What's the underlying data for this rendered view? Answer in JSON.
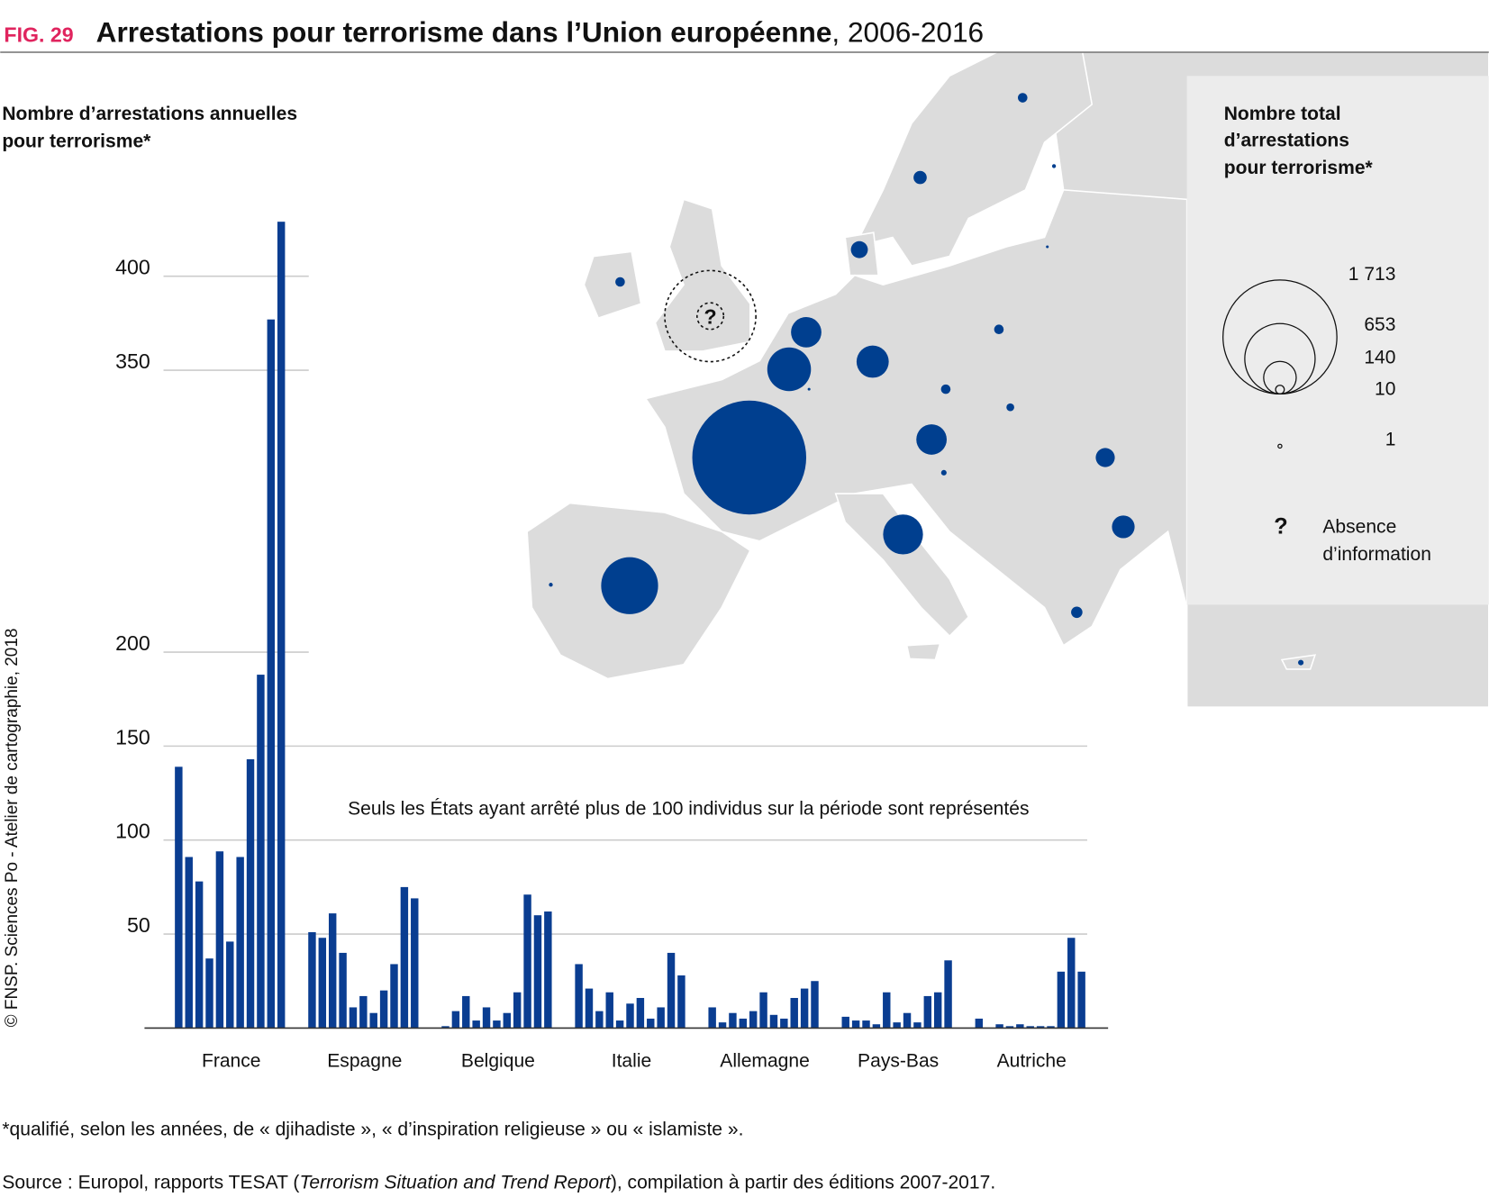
{
  "chart_data": {
    "type": "bar",
    "fig": "FIG. 29",
    "title": "Arrestations pour terrorisme dans l’Union européenne",
    "title_suffix": ", 2006-2016",
    "y_label": [
      "Nombre d’arrestations annuelles",
      "pour terrorisme*"
    ],
    "annotation": "Seuls les États ayant arrêté plus de 100 individus sur la période sont représentés",
    "credit": "© FNSP. Sciences Po - Atelier de cartographie, 2018",
    "footnote": "*qualifié, selon les années, de « djihadiste », « d’inspiration religieuse » ou « islamiste ».",
    "source": [
      "Source : Europol, rapports TESAT (",
      "Terrorism Situation and Trend Report",
      "), compilation à partir des éditions 2007-2017."
    ],
    "color": "#0a3d91",
    "categories": [
      "France",
      "Espagne",
      "Belgique",
      "Italie",
      "Allemagne",
      "Pays-Bas",
      "Autriche"
    ],
    "values": [
      [
        139,
        91,
        78,
        37,
        94,
        46,
        91,
        143,
        188,
        377,
        429
      ],
      [
        51,
        48,
        61,
        40,
        11,
        17,
        8,
        20,
        34,
        75,
        69
      ],
      [
        1,
        9,
        17,
        4,
        11,
        4,
        8,
        19,
        71,
        60,
        62
      ],
      [
        34,
        21,
        9,
        19,
        4,
        13,
        16,
        5,
        11,
        40,
        28
      ],
      [
        11,
        3,
        8,
        5,
        9,
        19,
        7,
        5,
        16,
        21,
        25
      ],
      [
        6,
        4,
        4,
        2,
        19,
        3,
        8,
        3,
        17,
        19,
        36
      ],
      [
        5,
        0,
        2,
        1,
        2,
        1,
        1,
        1,
        30,
        48,
        30
      ]
    ],
    "ylim": [
      0,
      430
    ],
    "yticks": [
      50,
      100,
      150,
      200,
      350,
      400
    ],
    "map": {
      "legend_title": [
        "Nombre total",
        "d’arrestations",
        "pour terrorisme*"
      ],
      "legend_values": [
        {
          "value": 1713,
          "label": "1 713"
        },
        653,
        140,
        10,
        1
      ],
      "missing_symbol": "?",
      "missing_label": [
        "Absence",
        "d’information"
      ],
      "bubble_color": "#003f8f",
      "bubbles": [
        1713,
        428,
        252,
        122,
        137,
        210,
        122,
        48,
        68,
        38,
        23,
        12,
        12,
        12,
        12,
        17,
        4,
        2,
        1,
        8,
        4,
        1,
        2
      ]
    }
  }
}
